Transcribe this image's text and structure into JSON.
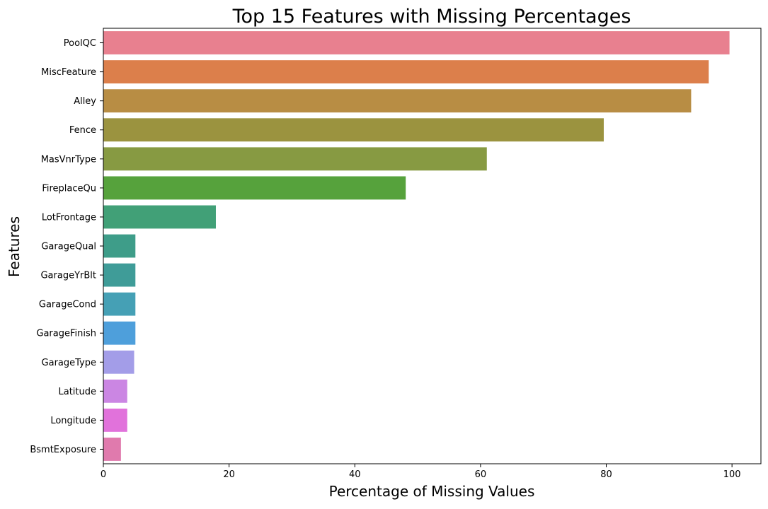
{
  "chart_data": {
    "type": "bar",
    "orientation": "horizontal",
    "title": "Top 15 Features with Missing Percentages",
    "xlabel": "Percentage of Missing Values",
    "ylabel": "Features",
    "xlim": [
      0,
      104.6
    ],
    "xticks": [
      0,
      20,
      40,
      60,
      80,
      100
    ],
    "grid": false,
    "legend": "none",
    "categories": [
      "PoolQC",
      "MiscFeature",
      "Alley",
      "Fence",
      "MasVnrType",
      "FireplaceQu",
      "LotFrontage",
      "GarageQual",
      "GarageYrBlt",
      "GarageCond",
      "GarageFinish",
      "GarageType",
      "Latitude",
      "Longitude",
      "BsmtExposure"
    ],
    "values": [
      99.6,
      96.3,
      93.5,
      79.6,
      61.0,
      48.1,
      17.9,
      5.1,
      5.1,
      5.1,
      5.1,
      4.9,
      3.8,
      3.8,
      2.8
    ],
    "colors": [
      "#e8808f",
      "#dc7f4b",
      "#b88d44",
      "#9b933f",
      "#879a42",
      "#56a23c",
      "#41a077",
      "#3e9d89",
      "#3f9c98",
      "#45a0b5",
      "#4e9fdb",
      "#a39de8",
      "#cb86e3",
      "#e172db",
      "#e07aad"
    ]
  }
}
